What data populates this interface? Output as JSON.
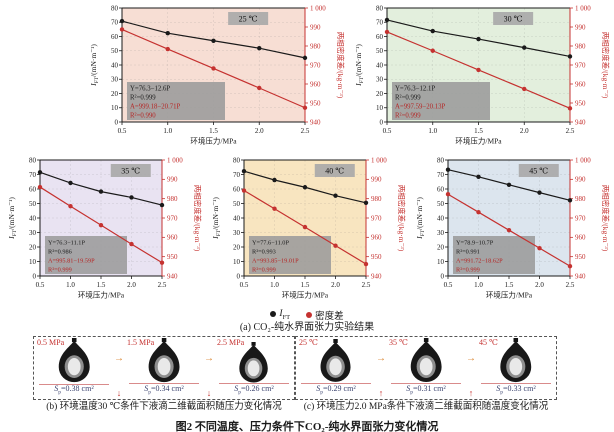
{
  "legend": {
    "items": [
      {
        "pre": "I",
        "sub": "FT",
        "color": "#1a1a1a"
      },
      {
        "label": "密度差",
        "color": "#c53230"
      }
    ]
  },
  "captions": {
    "a": "(a) CO₂-纯水界面张力实验结果",
    "main": "图2  不同温度、压力条件下CO₂-纯水界面张力变化情况"
  },
  "icons": {
    "arrow_right": "→",
    "arrow_down": "↓",
    "arrow_up": "↑"
  },
  "axes_common": {
    "xlabel": "环境压力/MPa",
    "x_ticks": [
      "0.5",
      "1.0",
      "1.5",
      "2.0",
      "2.5"
    ],
    "xlim": [
      0.5,
      2.5
    ],
    "ylabel_left": {
      "pre": "I",
      "sub": "FT",
      "post": "/(mN·m⁻¹)"
    },
    "ylabel_right": "两相密度差/(kg·m⁻³)",
    "ylim_left": [
      0,
      80
    ],
    "ytick_step_left": 10,
    "ylim_right": [
      940,
      1000
    ],
    "ytick_step_right": 10,
    "right_top_tick_label": "1 000",
    "grid": true,
    "colors": {
      "left_axis": "#1a1a1a",
      "right_axis": "#c53230",
      "title_box": "#a9a9a9",
      "annotation_box": "#9b9b9b"
    }
  },
  "chart_data": [
    {
      "type": "line",
      "title": "25 ℃",
      "bg": "#f7ded4",
      "x": [
        0.5,
        1.0,
        1.5,
        2.0,
        2.5
      ],
      "series": [
        {
          "name": "IFT",
          "axis": "left",
          "color": "#1a1a1a",
          "values": [
            70.8,
            62.3,
            57.0,
            51.8,
            45.0
          ]
        },
        {
          "name": "密度差",
          "axis": "right",
          "color": "#c53230",
          "values": [
            988.7,
            978.4,
            968.2,
            957.9,
            947.5
          ]
        }
      ],
      "annotation": [
        {
          "text": "Y=76.3−12.6P",
          "color": "#1a1a1a"
        },
        {
          "text": "R²=0.999",
          "color": "#1a1a1a"
        },
        {
          "text": "A=999.18−20.71P",
          "color": "#b52524"
        },
        {
          "text": "R²=0.990",
          "color": "#b52524"
        }
      ]
    },
    {
      "type": "line",
      "title": "30 ℃",
      "bg": "#e3efdd",
      "x": [
        0.5,
        1.0,
        1.5,
        2.0,
        2.5
      ],
      "series": [
        {
          "name": "IFT",
          "axis": "left",
          "color": "#1a1a1a",
          "values": [
            71.6,
            63.8,
            58.2,
            52.2,
            46.0
          ]
        },
        {
          "name": "密度差",
          "axis": "right",
          "color": "#c53230",
          "values": [
            987.4,
            977.5,
            967.4,
            957.4,
            947.2
          ]
        }
      ],
      "annotation": [
        {
          "text": "Y=76.3−12.1P",
          "color": "#1a1a1a"
        },
        {
          "text": "R²=0.999",
          "color": "#1a1a1a"
        },
        {
          "text": "A=997.59−20.13P",
          "color": "#b52524"
        },
        {
          "text": "R²=0.999",
          "color": "#b52524"
        }
      ]
    },
    {
      "type": "line",
      "title": "35 ℃",
      "bg": "#e9e3f2",
      "x": [
        0.5,
        1.0,
        1.5,
        2.0,
        2.5
      ],
      "series": [
        {
          "name": "IFT",
          "axis": "left",
          "color": "#1a1a1a",
          "values": [
            71.5,
            64.2,
            58.2,
            54.2,
            48.9
          ]
        },
        {
          "name": "密度差",
          "axis": "right",
          "color": "#c53230",
          "values": [
            986.0,
            976.1,
            966.3,
            956.5,
            946.9
          ]
        }
      ],
      "annotation": [
        {
          "text": "Y=76.3−11.1P",
          "color": "#1a1a1a"
        },
        {
          "text": "R²=0.986",
          "color": "#1a1a1a"
        },
        {
          "text": "A=995.81−19.59P",
          "color": "#b52524"
        },
        {
          "text": "R²=0.999",
          "color": "#b52524"
        }
      ]
    },
    {
      "type": "line",
      "title": "40 ℃",
      "bg": "#f8e5c0",
      "x": [
        0.5,
        1.0,
        1.5,
        2.0,
        2.5
      ],
      "series": [
        {
          "name": "IFT",
          "axis": "left",
          "color": "#1a1a1a",
          "values": [
            72.3,
            66.2,
            61.2,
            55.4,
            50.5
          ]
        },
        {
          "name": "密度差",
          "axis": "right",
          "color": "#c53230",
          "values": [
            984.2,
            974.8,
            965.3,
            955.7,
            946.2
          ]
        }
      ],
      "annotation": [
        {
          "text": "Y=77.6−11.0P",
          "color": "#1a1a1a"
        },
        {
          "text": "R²=0.993",
          "color": "#1a1a1a"
        },
        {
          "text": "A=993.85−19.01P",
          "color": "#b52524"
        },
        {
          "text": "R²=0.999",
          "color": "#b52524"
        }
      ]
    },
    {
      "type": "line",
      "title": "45 ℃",
      "bg": "#dce5ee",
      "x": [
        0.5,
        1.0,
        1.5,
        2.0,
        2.5
      ],
      "series": [
        {
          "name": "IFT",
          "axis": "left",
          "color": "#1a1a1a",
          "values": [
            73.3,
            68.4,
            62.9,
            57.5,
            52.2
          ]
        },
        {
          "name": "密度差",
          "axis": "right",
          "color": "#c53230",
          "values": [
            982.3,
            973.0,
            963.7,
            954.4,
            945.1
          ]
        }
      ],
      "annotation": [
        {
          "text": "Y=78.9−10.7P",
          "color": "#1a1a1a"
        },
        {
          "text": "R²=0.991",
          "color": "#1a1a1a"
        },
        {
          "text": "A=991.72−18.62P",
          "color": "#b52524"
        },
        {
          "text": "R²=0.999",
          "color": "#b52524"
        }
      ]
    }
  ],
  "droplet_panels": {
    "b": {
      "condition_labels": [
        "0.5 MPa",
        "1.5 MPa",
        "2.5 MPa"
      ],
      "areas": [
        0.38,
        0.34,
        0.26
      ],
      "area_symbol": {
        "base": "S",
        "sub": "p"
      },
      "area_unit": "cm²",
      "trend": "down",
      "caption": "(b) 环境温度30 ℃条件下液滴二维截面积随压力变化情况"
    },
    "c": {
      "condition_labels": [
        "25 ℃",
        "35 ℃",
        "45 ℃"
      ],
      "areas": [
        0.29,
        0.31,
        0.33
      ],
      "area_symbol": {
        "base": "S",
        "sub": "p"
      },
      "area_unit": "cm²",
      "trend": "up",
      "caption": "(c) 环境压力2.0 MPa条件下液滴二维截面积随温度变化情况"
    }
  }
}
